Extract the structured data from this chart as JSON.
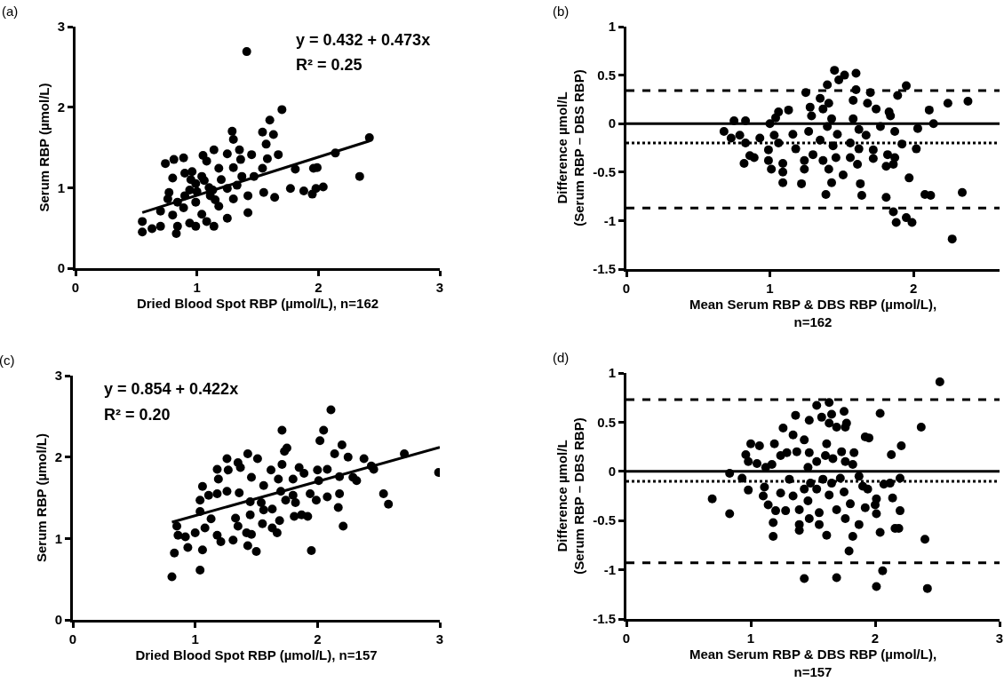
{
  "chart_data": [
    {
      "type": "scatter",
      "title": "(a)",
      "xlabel": "Dried Blood Spot RBP (µmol/L), n=162",
      "ylabel": "Serum RBP (µmol/L)",
      "annotations": [
        "y = 0.432 + 0.473x",
        "R² = 0.25"
      ],
      "marker": "circle",
      "xlim": [
        0,
        3
      ],
      "xticks": [
        0,
        1,
        2,
        3
      ],
      "ylim": [
        0,
        3
      ],
      "yticks": [
        0,
        1,
        2,
        3
      ],
      "series": [
        {
          "color": "#000000",
          "x": [
            1.7,
            1.6,
            1.54,
            1.63,
            1.29,
            1.3,
            1.57,
            1.67,
            1.14,
            1.35,
            1.05,
            1.45,
            1.25,
            0.89,
            0.81,
            0.74,
            1.08,
            1.36,
            1.58,
            1.18,
            1.54,
            1.81,
            1.96,
            1.99,
            2.14,
            2.42,
            2.34,
            0.8,
            0.9,
            1.04,
            1.47,
            1.77,
            1.88,
            1.95,
            1.98,
            2.04,
            1.55,
            1.64,
            0.77,
            0.76,
            0.94,
            1.11,
            1.25,
            1.33,
            1.42,
            1.42,
            1.18,
            1.25,
            0.99,
            0.89,
            1.04,
            1.14,
            1.08,
            0.94,
            0.83,
            0.55,
            0.55,
            0.63,
            0.7,
            0.8,
            0.7,
            0.84,
            0.99,
            1.06,
            1.13,
            1.3,
            1.37,
            0.96,
            0.84,
            0.99,
            1.41,
            1.0,
            1.1,
            1.2,
            0.9,
            1.15,
            1.3,
            0.95
          ],
          "values": [
            1.97,
            1.84,
            1.69,
            1.66,
            1.7,
            1.6,
            1.54,
            1.41,
            1.47,
            1.47,
            1.4,
            1.41,
            1.42,
            1.37,
            1.35,
            1.3,
            1.33,
            1.35,
            1.36,
            1.24,
            1.24,
            1.23,
            1.24,
            1.25,
            1.43,
            1.62,
            1.14,
            1.12,
            1.18,
            1.14,
            1.14,
            0.99,
            0.96,
            0.92,
            0.99,
            1.01,
            0.94,
            0.88,
            0.94,
            0.86,
            0.97,
            0.9,
            0.99,
            1.03,
            0.9,
            0.69,
            0.77,
            0.62,
            0.82,
            0.75,
            0.67,
            0.52,
            0.58,
            0.56,
            0.43,
            0.45,
            0.58,
            0.49,
            0.52,
            0.66,
            0.71,
            0.82,
            1.05,
            1.09,
            0.97,
            0.86,
            1.14,
            1.2,
            0.52,
            0.52,
            2.69,
            0.95,
            1.0,
            1.1,
            0.9,
            0.85,
            1.25,
            1.1
          ]
        },
        {
          "type": "line",
          "marker": "none",
          "color": "#000000",
          "x": [
            0.55,
            2.42
          ],
          "values": [
            0.69,
            1.58
          ]
        }
      ]
    },
    {
      "type": "scatter",
      "title": "(b)",
      "xlabel": "Mean Serum RBP & DBS RBP (µmol/L),\nn=162",
      "ylabel": "Difference µmol/L\n(Serum RBP – DBS RBP)",
      "marker": "circle",
      "xlim": [
        0,
        2.6
      ],
      "xticks": [
        0,
        1,
        2
      ],
      "ylim": [
        -1.5,
        1
      ],
      "yticks": [
        -1.5,
        -1,
        -0.5,
        0,
        0.5,
        1
      ],
      "ref_lines": [
        {
          "axis": "y",
          "value": 0.34,
          "color": "#000000",
          "line_style": "dashed"
        },
        {
          "axis": "y",
          "value": 0,
          "color": "#000000",
          "line_style": "solid"
        },
        {
          "axis": "y",
          "value": -0.2,
          "color": "#000000",
          "line_style": "dotted"
        },
        {
          "axis": "y",
          "value": -0.87,
          "color": "#000000",
          "line_style": "dashed"
        }
      ],
      "series": [
        {
          "color": "#000000",
          "x": [
            0.68,
            0.75,
            0.83,
            0.73,
            0.79,
            0.83,
            0.86,
            0.82,
            0.89,
            0.93,
            0.99,
            0.99,
            1.01,
            1.0,
            1.04,
            1.06,
            1.13,
            1.03,
            1.06,
            1.09,
            1.09,
            1.09,
            1.16,
            1.18,
            1.22,
            1.24,
            1.25,
            1.28,
            1.29,
            1.27,
            1.3,
            1.24,
            1.35,
            1.37,
            1.41,
            1.4,
            1.35,
            1.37,
            1.41,
            1.43,
            1.39,
            1.43,
            1.47,
            1.44,
            1.46,
            1.51,
            1.56,
            1.58,
            1.6,
            1.7,
            1.68,
            1.74,
            1.58,
            1.62,
            1.67,
            1.56,
            1.62,
            1.72,
            1.72,
            1.61,
            1.63,
            1.64,
            1.77,
            1.83,
            1.84,
            1.87,
            1.89,
            1.95,
            1.92,
            1.82,
            1.87,
            1.81,
            1.86,
            2.02,
            1.97,
            1.81,
            2.03,
            2.11,
            2.14,
            2.24,
            2.38,
            2.08,
            2.12,
            2.34,
            1.86,
            1.88,
            1.95,
            1.99,
            2.27,
            1.48,
            1.52,
            1.4,
            1.45,
            1.6
          ],
          "values": [
            -0.08,
            0.03,
            0.03,
            -0.15,
            -0.12,
            -0.2,
            -0.33,
            -0.41,
            -0.35,
            -0.15,
            -0.27,
            -0.38,
            -0.47,
            0.0,
            0.06,
            0.12,
            0.14,
            -0.12,
            -0.2,
            -0.41,
            -0.5,
            -0.61,
            -0.11,
            -0.26,
            -0.62,
            -0.38,
            0.32,
            0.17,
            0.08,
            -0.08,
            -0.32,
            -0.47,
            0.26,
            0.15,
            0.21,
            -0.03,
            -0.17,
            -0.38,
            -0.47,
            -0.61,
            -0.73,
            0.05,
            -0.11,
            -0.23,
            -0.35,
            -0.53,
            -0.35,
            0.24,
            0.35,
            0.32,
            0.21,
            0.15,
            0.05,
            -0.06,
            -0.12,
            -0.2,
            -0.26,
            -0.27,
            -0.36,
            -0.42,
            -0.62,
            -0.74,
            -0.03,
            0.12,
            0.08,
            -0.08,
            0.29,
            0.39,
            -0.21,
            -0.32,
            -0.35,
            -0.44,
            -0.42,
            -0.26,
            -0.56,
            -0.76,
            -0.05,
            0.14,
            0.0,
            0.21,
            0.23,
            -0.73,
            -0.74,
            -0.71,
            -0.91,
            -1.02,
            -0.97,
            -1.02,
            -1.19,
            0.45,
            0.5,
            0.4,
            0.55,
            0.52
          ]
        }
      ]
    },
    {
      "type": "scatter",
      "title": "(c)",
      "xlabel": "Dried Blood Spot RBP (µmol/L), n=157",
      "ylabel": "Serum RBP (µmol/L)",
      "annotations": [
        "y = 0.854 + 0.422x",
        "R² = 0.20"
      ],
      "marker": "circle",
      "xlim": [
        0,
        3
      ],
      "xticks": [
        0,
        1,
        2,
        3
      ],
      "ylim": [
        0,
        3
      ],
      "yticks": [
        0,
        1,
        2,
        3
      ],
      "series": [
        {
          "color": "#000000",
          "x": [
            0.81,
            1.04,
            0.83,
            0.94,
            1.06,
            0.86,
            0.92,
            0.85,
            1.0,
            1.08,
            1.18,
            1.21,
            1.31,
            1.13,
            1.04,
            1.04,
            1.06,
            1.11,
            1.18,
            1.19,
            1.18,
            1.27,
            1.26,
            1.35,
            1.43,
            1.51,
            1.37,
            1.26,
            1.36,
            1.33,
            1.35,
            1.42,
            1.43,
            1.5,
            1.46,
            1.45,
            1.46,
            1.45,
            1.55,
            1.54,
            1.56,
            1.62,
            1.63,
            1.67,
            1.69,
            1.63,
            1.7,
            1.71,
            1.73,
            1.75,
            1.71,
            1.8,
            1.82,
            1.81,
            1.87,
            1.92,
            1.89,
            1.94,
            1.99,
            2.0,
            1.95,
            2.02,
            2.05,
            2.11,
            2.08,
            2.14,
            2.2,
            2.25,
            2.21,
            2.17,
            2.18,
            2.08,
            2.29,
            2.32,
            2.38,
            2.44,
            2.46,
            2.54,
            2.58,
            2.71,
            2.99,
            2.18,
            1.85,
            2.01,
            1.56,
            1.8,
            1.74,
            1.68
          ],
          "values": [
            0.53,
            0.61,
            0.82,
            0.89,
            0.86,
            1.04,
            1.02,
            1.15,
            1.07,
            1.13,
            1.04,
            0.96,
            0.98,
            1.24,
            1.33,
            1.47,
            1.64,
            1.53,
            1.55,
            1.73,
            1.85,
            1.84,
            1.98,
            1.93,
            2.04,
            1.98,
            1.87,
            1.58,
            1.56,
            1.25,
            1.15,
            1.07,
            0.91,
            0.84,
            1.05,
            1.29,
            1.75,
            1.45,
            1.18,
            1.44,
            1.65,
            1.84,
            1.13,
            1.07,
            1.22,
            1.36,
            1.58,
            1.91,
            2.07,
            2.11,
            2.33,
            1.73,
            1.44,
            1.27,
            1.29,
            1.27,
            1.8,
            1.55,
            1.47,
            1.84,
            0.85,
            2.2,
            2.33,
            2.58,
            1.85,
            2.04,
            2.15,
            2.0,
            1.15,
            1.38,
            1.55,
            1.51,
            1.75,
            1.71,
            1.98,
            1.89,
            1.85,
            1.55,
            1.42,
            2.04,
            1.81,
            1.76,
            1.87,
            1.71,
            1.35,
            1.53,
            1.47,
            1.73
          ]
        },
        {
          "type": "line",
          "marker": "none",
          "color": "#000000",
          "x": [
            0.81,
            3.0
          ],
          "values": [
            1.2,
            2.12
          ]
        }
      ]
    },
    {
      "type": "scatter",
      "title": "(d)",
      "xlabel": "Mean Serum RBP & DBS RBP (µmol/L),\nn=157",
      "ylabel": "Difference µmol/L\n(Serum RBP – DBS RBP)",
      "marker": "circle",
      "xlim": [
        0,
        3
      ],
      "xticks": [
        0,
        1,
        2,
        3
      ],
      "ylim": [
        -1.5,
        1
      ],
      "yticks": [
        -1.5,
        -1,
        -0.5,
        0,
        0.5,
        1
      ],
      "ref_lines": [
        {
          "axis": "y",
          "value": 0.73,
          "color": "#000000",
          "line_style": "dashed"
        },
        {
          "axis": "y",
          "value": 0,
          "color": "#000000",
          "line_style": "solid"
        },
        {
          "axis": "y",
          "value": -0.1,
          "color": "#000000",
          "line_style": "dotted"
        },
        {
          "axis": "y",
          "value": -0.93,
          "color": "#000000",
          "line_style": "dashed"
        }
      ],
      "series": [
        {
          "color": "#000000",
          "x": [
            1.53,
            1.63,
            1.36,
            1.47,
            1.57,
            1.65,
            1.75,
            1.63,
            1.69,
            1.76,
            1.77,
            2.04,
            2.37,
            1.26,
            1.34,
            1.43,
            1.92,
            1.95,
            1.0,
            1.07,
            1.19,
            0.96,
            0.98,
            1.05,
            1.12,
            1.17,
            1.24,
            1.29,
            1.37,
            1.47,
            1.61,
            1.6,
            1.66,
            1.73,
            1.83,
            1.76,
            1.82,
            1.53,
            1.46,
            2.13,
            2.21,
            0.83,
            0.93,
            0.98,
            0.69,
            0.83,
            1.11,
            1.1,
            1.14,
            1.2,
            1.28,
            1.24,
            1.31,
            1.34,
            1.39,
            1.43,
            1.46,
            1.48,
            1.53,
            1.55,
            1.58,
            1.63,
            1.65,
            1.69,
            1.72,
            1.75,
            1.76,
            1.8,
            1.87,
            1.9,
            1.94,
            1.92,
            2.01,
            2.01,
            2.0,
            2.07,
            2.12,
            2.14,
            2.2,
            2.2,
            2.16,
            2.19,
            2.04,
            1.87,
            1.82,
            1.79,
            1.61,
            1.55,
            1.47,
            1.39,
            1.39,
            1.18,
            1.18,
            2.4,
            2.06,
            2.01,
            2.42,
            1.43,
            1.69,
            2.52
          ],
          "values": [
            0.67,
            0.7,
            0.57,
            0.52,
            0.55,
            0.58,
            0.61,
            0.49,
            0.45,
            0.45,
            0.49,
            0.59,
            0.45,
            0.44,
            0.37,
            0.32,
            0.35,
            0.34,
            0.28,
            0.26,
            0.28,
            0.17,
            0.1,
            0.08,
            0.04,
            0.07,
            0.16,
            0.19,
            0.2,
            0.19,
            0.28,
            0.16,
            0.13,
            0.2,
            0.19,
            0.1,
            0.07,
            0.1,
            0.04,
            0.17,
            0.26,
            -0.02,
            -0.07,
            -0.19,
            -0.28,
            -0.43,
            -0.16,
            -0.25,
            -0.34,
            -0.4,
            -0.4,
            -0.22,
            -0.08,
            -0.25,
            -0.39,
            -0.18,
            -0.3,
            -0.12,
            -0.18,
            -0.42,
            -0.08,
            -0.24,
            -0.12,
            -0.39,
            -0.07,
            -0.21,
            -0.48,
            -0.33,
            -0.05,
            -0.15,
            -0.18,
            -0.37,
            -0.43,
            -0.28,
            -0.34,
            -0.13,
            -0.12,
            -0.27,
            -0.07,
            -0.4,
            -0.58,
            -0.58,
            -0.62,
            -0.54,
            -0.66,
            -0.81,
            -0.65,
            -0.54,
            -0.48,
            -0.54,
            -0.6,
            -0.52,
            -0.66,
            -0.69,
            -1.01,
            -1.17,
            -1.19,
            -1.09,
            -1.08,
            0.91
          ]
        }
      ]
    }
  ]
}
